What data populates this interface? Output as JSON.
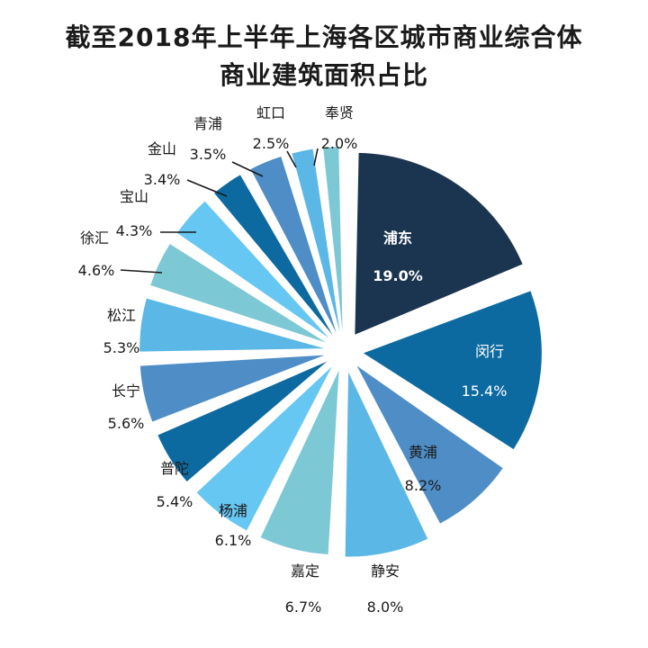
{
  "title_line1": "截至2018年上半年上海各区城市商业综合体",
  "title_line2": "商业建筑面积占比",
  "chart_data": {
    "type": "pie",
    "title": "截至2018年上半年上海各区城市商业综合体商业建筑面积占比",
    "unit": "%",
    "series": [
      {
        "name": "浦东",
        "value": 19.0,
        "label": "19.0%",
        "color": "#1b3550"
      },
      {
        "name": "闵行",
        "value": 15.4,
        "label": "15.4%",
        "color": "#0d6aa0"
      },
      {
        "name": "黄浦",
        "value": 8.2,
        "label": "8.2%",
        "color": "#4e8dc6"
      },
      {
        "name": "静安",
        "value": 8.0,
        "label": "8.0%",
        "color": "#5ab7e6"
      },
      {
        "name": "嘉定",
        "value": 6.7,
        "label": "6.7%",
        "color": "#7cc8d4"
      },
      {
        "name": "杨浦",
        "value": 6.1,
        "label": "6.1%",
        "color": "#67c7f3"
      },
      {
        "name": "普陀",
        "value": 5.4,
        "label": "5.4%",
        "color": "#0d6aa0"
      },
      {
        "name": "长宁",
        "value": 5.6,
        "label": "5.6%",
        "color": "#4e8dc6"
      },
      {
        "name": "松江",
        "value": 5.3,
        "label": "5.3%",
        "color": "#5ab7e6"
      },
      {
        "name": "徐汇",
        "value": 4.6,
        "label": "4.6%",
        "color": "#7cc8d4"
      },
      {
        "name": "宝山",
        "value": 4.3,
        "label": "4.3%",
        "color": "#67c7f3"
      },
      {
        "name": "金山",
        "value": 3.4,
        "label": "3.4%",
        "color": "#0d6aa0"
      },
      {
        "name": "青浦",
        "value": 3.5,
        "label": "3.5%",
        "color": "#4e8dc6"
      },
      {
        "name": "虹口",
        "value": 2.5,
        "label": "2.5%",
        "color": "#5ab7e6"
      },
      {
        "name": "奉贤",
        "value": 2.0,
        "label": "2.0%",
        "color": "#7cc8d4"
      }
    ]
  }
}
